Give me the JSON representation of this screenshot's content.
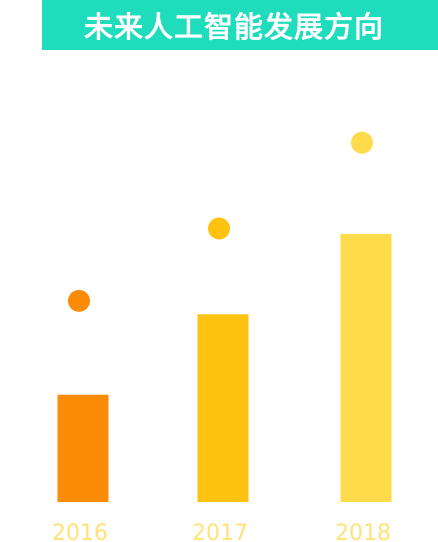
{
  "title": "未来人工智能发展方向",
  "colors": {
    "banner": "#1fdcbd",
    "title_text": "#ffffff",
    "tick_label": "#ffe27a"
  },
  "chart_data": {
    "type": "bar",
    "categories": [
      "2016",
      "2017",
      "2018"
    ],
    "values": [
      40,
      70,
      100
    ],
    "marker_values": [
      75,
      102,
      134
    ],
    "colors": [
      "#fb8c07",
      "#fec210",
      "#fedb4b"
    ],
    "title": "",
    "xlabel": "",
    "ylabel": "",
    "ylim": [
      0,
      135
    ],
    "grid": false,
    "legend": "none"
  }
}
